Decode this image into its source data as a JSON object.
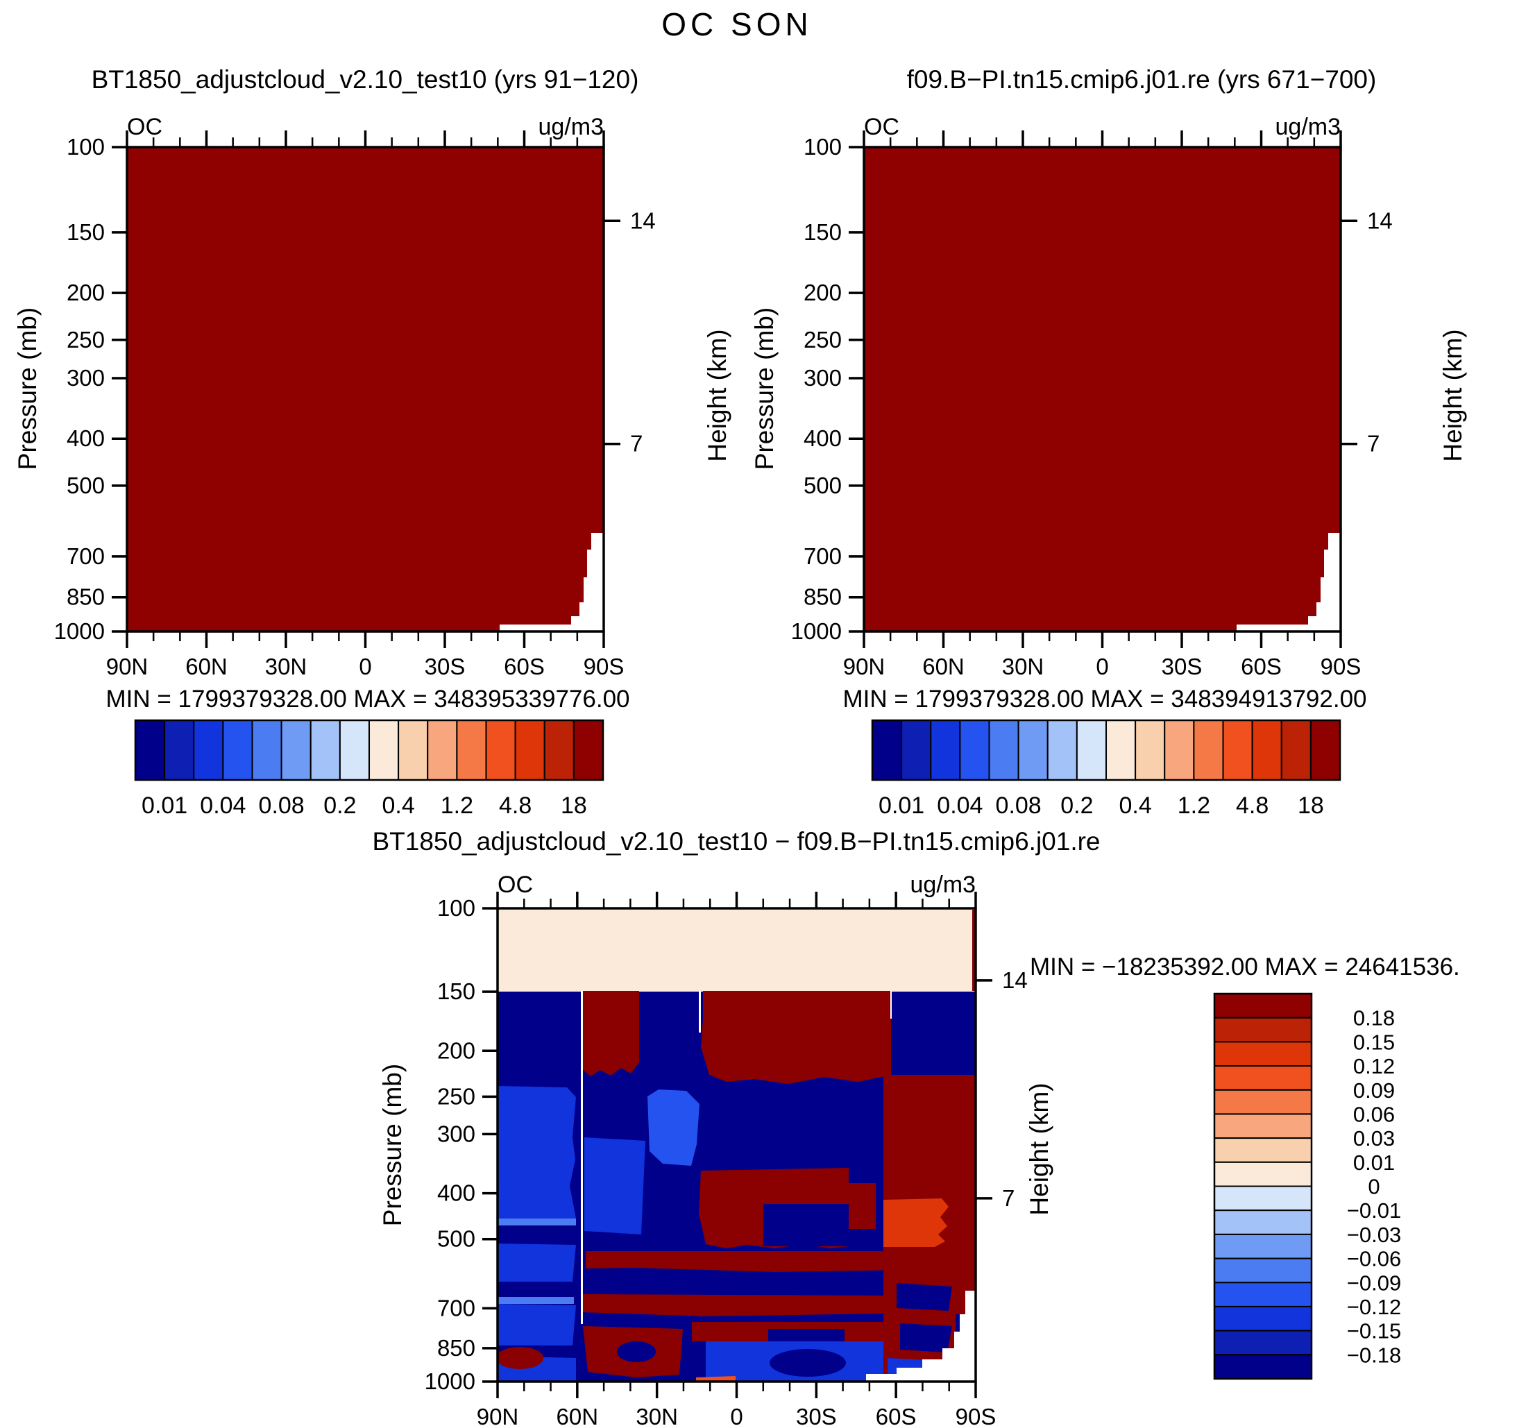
{
  "figure": {
    "title": "OC SON"
  },
  "palette": {
    "navy": "#00008B",
    "blue": "#1134DC",
    "blue_light": "#2453F0",
    "blue_pale": "#4B7CF2",
    "red": "#8B0000",
    "orange": "#DE3509",
    "orange_hot": "#F1511F",
    "cream": "#FBEADA",
    "white": "#FFFFFF",
    "frame": "#000000"
  },
  "colorbar_colors": [
    "#00008B",
    "#0E1FB4",
    "#1134DC",
    "#2453F0",
    "#4B7CF2",
    "#6F9BF4",
    "#A3C2F7",
    "#D5E5FA",
    "#FBEADA",
    "#F9D0AE",
    "#F7A67D",
    "#F57847",
    "#F1511F",
    "#DE3509",
    "#BB2206",
    "#8F0000"
  ],
  "chart_data": [
    {
      "id": "panel-top-left",
      "type": "heatmap",
      "subtype": "filled-contour latitude-pressure cross-section",
      "title": "BT1850_adjustcloud_v2.10_test10 (yrs 91−120)",
      "field_label": "OC",
      "units": "ug/m3",
      "x_axis": {
        "ticks": [
          "90N",
          "60N",
          "30N",
          "0",
          "30S",
          "60S",
          "90S"
        ],
        "minor_step_deg": 10
      },
      "y_axis": {
        "label": "Pressure (mb)",
        "ticks": [
          100,
          150,
          200,
          250,
          300,
          400,
          500,
          700,
          850,
          1000
        ],
        "scale": "log"
      },
      "y2_axis": {
        "label": "Height (km)",
        "ticks": [
          "14",
          "7"
        ]
      },
      "stats": {
        "min": "1799379328.00",
        "max": "348395339776.00",
        "text": "MIN  =  1799379328.00    MAX  =  348395339776.00"
      },
      "colorbar": {
        "orientation": "horizontal",
        "labels": [
          "0.01",
          "0.04",
          "0.08",
          "0.2",
          "0.4",
          "1.2",
          "4.8",
          "18"
        ]
      },
      "field_summary": "entire section saturated at highest contour level (dark red); white below-surface notch near 90S at lowest levels"
    },
    {
      "id": "panel-top-right",
      "type": "heatmap",
      "subtype": "filled-contour latitude-pressure cross-section",
      "title": "f09.B−PI.tn15.cmip6.j01.re (yrs 671−700)",
      "field_label": "OC",
      "units": "ug/m3",
      "x_axis": {
        "ticks": [
          "90N",
          "60N",
          "30N",
          "0",
          "30S",
          "60S",
          "90S"
        ],
        "minor_step_deg": 10
      },
      "y_axis": {
        "label": "Pressure (mb)",
        "ticks": [
          100,
          150,
          200,
          250,
          300,
          400,
          500,
          700,
          850,
          1000
        ],
        "scale": "log"
      },
      "y2_axis": {
        "label": "Height (km)",
        "ticks": [
          "14",
          "7"
        ]
      },
      "stats": {
        "min": "1799379328.00",
        "max": "348394913792.00",
        "text": "MIN  =  1799379328.00    MAX  =  348394913792.00"
      },
      "colorbar": {
        "orientation": "horizontal",
        "labels": [
          "0.01",
          "0.04",
          "0.08",
          "0.2",
          "0.4",
          "1.2",
          "4.8",
          "18"
        ]
      },
      "field_summary": "entire section saturated at highest contour level (dark red); white below-surface notch near 90S at lowest levels"
    },
    {
      "id": "panel-difference",
      "type": "heatmap",
      "subtype": "filled-contour difference cross-section",
      "title": "BT1850_adjustcloud_v2.10_test10 − f09.B−PI.tn15.cmip6.j01.re",
      "field_label": "OC",
      "units": "ug/m3",
      "x_axis": {
        "ticks": [
          "90N",
          "60N",
          "30N",
          "0",
          "30S",
          "60S",
          "90S"
        ],
        "minor_step_deg": 10
      },
      "y_axis": {
        "label": "Pressure (mb)",
        "ticks": [
          100,
          150,
          200,
          250,
          300,
          400,
          500,
          700,
          850,
          1000
        ],
        "scale": "log"
      },
      "y2_axis": {
        "label": "Height (km)",
        "ticks": [
          "14",
          "7"
        ]
      },
      "stats": {
        "min": "−18235392.00",
        "max": "24641536.",
        "text": "MIN  =  −18235392.00    MAX  =  24641536."
      },
      "colorbar": {
        "orientation": "vertical",
        "labels": [
          "0.18",
          "0.15",
          "0.12",
          "0.09",
          "0.06",
          "0.03",
          "0.01",
          "0",
          "−0.01",
          "−0.03",
          "−0.06",
          "−0.09",
          "−0.12",
          "−0.15",
          "−0.18"
        ]
      },
      "field_summary": "cream band above 150 mb; below: patchwork of strong negative (dark blue) and strong positive (dark red) differences with red columns near 55N, 55S–75S, tropics 200 mb, horizontal red stripes at 550–900 mb, orange patch near 500 mb at 60S, white below-surface notch near 90S"
    }
  ]
}
